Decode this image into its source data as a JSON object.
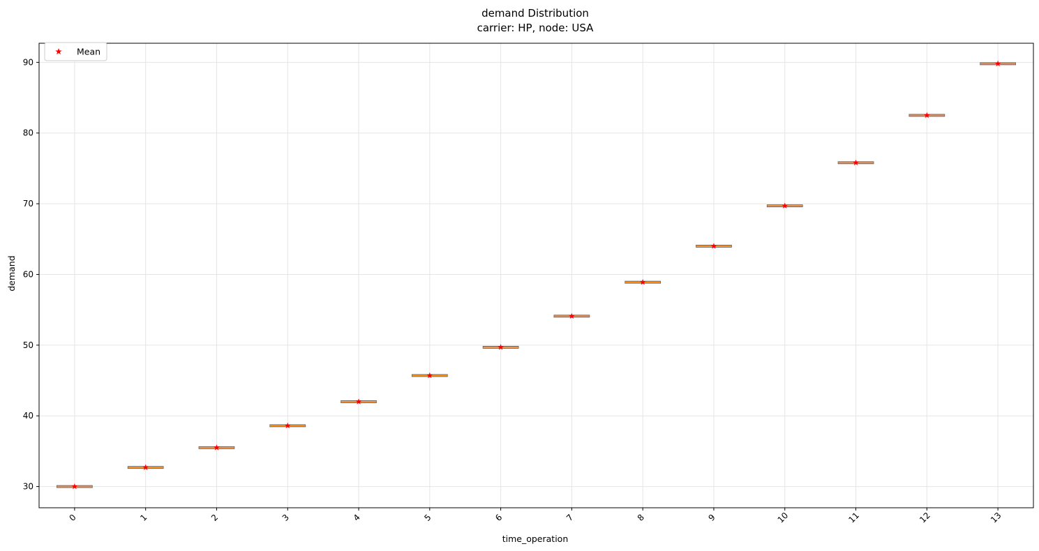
{
  "chart_data": {
    "type": "box",
    "title": "demand Distribution",
    "subtitle": "carrier: HP, node: USA",
    "xlabel": "time_operation",
    "ylabel": "demand",
    "categories": [
      "0",
      "1",
      "2",
      "3",
      "4",
      "5",
      "6",
      "7",
      "8",
      "9",
      "10",
      "11",
      "12",
      "13"
    ],
    "values": [
      30.0,
      32.7,
      35.5,
      38.6,
      42.0,
      45.7,
      49.7,
      54.1,
      58.9,
      64.0,
      69.7,
      75.8,
      82.5,
      89.8
    ],
    "ylim": [
      27.0,
      92.7
    ],
    "yticks": [
      30,
      40,
      50,
      60,
      70,
      80,
      90
    ],
    "grid": true,
    "legend": {
      "position": "top-left",
      "entries": [
        "Mean"
      ]
    },
    "colors": {
      "box_fill": "#f0a07a",
      "box_edge": "#555555",
      "median": "#ff8c00",
      "mean_marker": "#ff0000",
      "grid": "#e5e5e5"
    }
  }
}
